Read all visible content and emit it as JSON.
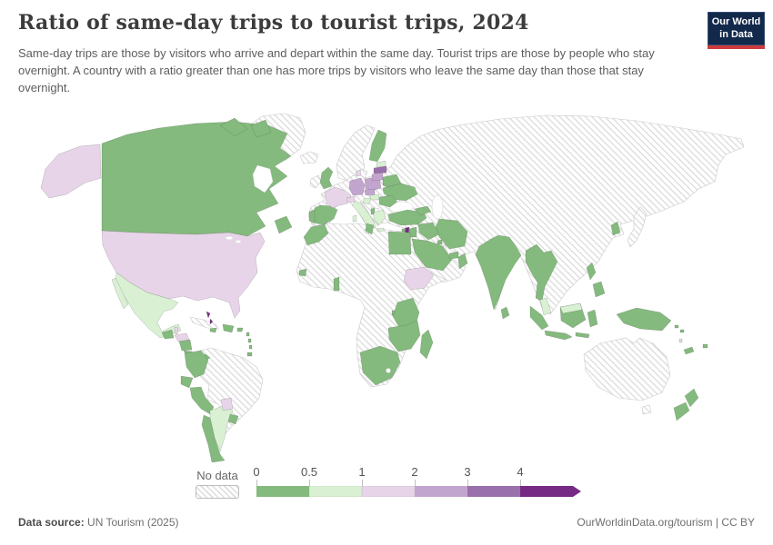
{
  "header": {
    "title": "Ratio of same-day trips to tourist trips, 2024",
    "subtitle": "Same-day trips are those by visitors who arrive and depart within the same day. Tourist trips are those by people who stay overnight. A country with a ratio greater than one has more trips by visitors who leave the same day than those that stay overnight.",
    "logo": {
      "line1": "Our World",
      "line2": "in Data",
      "bg": "#13294b",
      "accent": "#cf3b3c"
    }
  },
  "legend": {
    "no_data_label": "No data",
    "tick_labels": [
      "0",
      "0.5",
      "1",
      "2",
      "3",
      "4"
    ],
    "bins": [
      {
        "range": "0-0.5",
        "color": "#84ba7d"
      },
      {
        "range": "0.5-1",
        "color": "#d9f0d3"
      },
      {
        "range": "1-2",
        "color": "#e7d4e8"
      },
      {
        "range": "2-3",
        "color": "#c2a5cf"
      },
      {
        "range": "3-4",
        "color": "#9970ab"
      },
      {
        "range": "4+",
        "color": "#762a83"
      }
    ]
  },
  "map_data": {
    "type": "choropleth",
    "value": "ratio of same-day trips to tourist trips",
    "year": "2024",
    "countries": {
      "Canada": "0-0.5",
      "United States": "1-2",
      "Mexico": "0.5-1",
      "Guatemala": "0-0.5",
      "Belize": "1-2",
      "Honduras": "1-2",
      "Nicaragua": "0-0.5",
      "Costa Rica": "0-0.5",
      "Panama": "0-0.5",
      "Bahamas": "4+",
      "Jamaica": "0-0.5",
      "Dominican Republic": "0-0.5",
      "Puerto Rico": "0-0.5",
      "Guadeloupe": "0-0.5",
      "Saint Lucia": "0-0.5",
      "Grenada": "0-0.5",
      "Trinidad and Tobago": "0-0.5",
      "Colombia": "0-0.5",
      "Ecuador": "0-0.5",
      "Peru": "0-0.5",
      "Chile": "0-0.5",
      "Argentina": "0.5-1",
      "Paraguay": "1-2",
      "Uruguay": "0-0.5",
      "United Kingdom": "0-0.5",
      "Spain": "0-0.5",
      "Portugal": "0-0.5",
      "France": "1-2",
      "Switzerland": "1-2",
      "Italy": "0.5-1",
      "Germany": "2-3",
      "Denmark": "1-2",
      "Czechia": "2-3",
      "Poland": "2-3",
      "Estonia": "0.5-1",
      "Latvia": "3-4",
      "Lithuania": "2-3",
      "Belarus": "0-0.5",
      "Ukraine": "0-0.5",
      "Romania": "0-0.5",
      "Hungary": "0.5-1",
      "Croatia": "0.5-1",
      "Greece": "0.5-1",
      "Albania": "0-0.5",
      "Finland": "0-0.5",
      "Turkey": "0-0.5",
      "Cyprus": "0-0.5",
      "Georgia": "0-0.5",
      "Azerbaijan": "0-0.5",
      "Israel": "4+",
      "Jordan": "0-0.5",
      "Iraq": "0-0.5",
      "Iran": "0-0.5",
      "Saudi Arabia": "0-0.5",
      "Kuwait": "0-0.5",
      "United Arab Emirates": "0-0.5",
      "Qatar": "0-0.5",
      "Oman": "0-0.5",
      "Morocco": "0-0.5",
      "Tunisia": "0-0.5",
      "Egypt": "0-0.5",
      "Senegal": "0-0.5",
      "Benin": "0-0.5",
      "Rwanda": "0-0.5",
      "Kenya": "0-0.5",
      "Tanzania": "0-0.5",
      "Zambia": "0-0.5",
      "Zimbabwe": "0-0.5",
      "Mozambique": "0-0.5",
      "South Africa": "0-0.5",
      "Madagascar": "0-0.5",
      "Ethiopia": "1-2",
      "India": "0-0.5",
      "Nepal": "0-0.5",
      "Sri Lanka": "0-0.5",
      "Myanmar": "0-0.5",
      "Thailand": "0-0.5",
      "Laos": "0-0.5",
      "Malaysia": "0.5-1",
      "Indonesia": "0-0.5",
      "Philippines": "0-0.5",
      "South Korea": "0-0.5",
      "Papua New Guinea": "0-0.5",
      "New Zealand": "0-0.5",
      "Fiji": "0-0.5",
      "New Caledonia": "0-0.5",
      "Vanuatu": "1-2",
      "Solomon Islands": "0-0.5"
    },
    "no_data_regions": [
      "Greenland",
      "Iceland",
      "Ireland",
      "Norway",
      "Sweden",
      "Russia",
      "Kazakhstan",
      "China",
      "Mongolia",
      "Japan",
      "Pakistan",
      "Vietnam",
      "Cambodia",
      "Australia",
      "Brazil",
      "Venezuela",
      "Bolivia",
      "Cuba",
      "Algeria",
      "Libya",
      "Syria",
      "Yemen",
      "Namibia",
      "Botswana",
      "Nigeria",
      "Sudan"
    ]
  },
  "footer": {
    "source_label": "Data source:",
    "source_value": " UN Tourism (2025)",
    "rights": "OurWorldinData.org/tourism | CC BY"
  }
}
